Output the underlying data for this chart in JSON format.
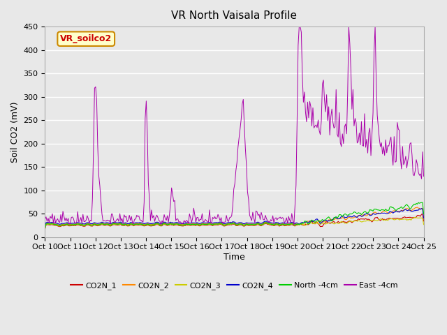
{
  "title": "VR North Vaisala Profile",
  "xlabel": "Time",
  "ylabel": "Soil CO2 (mV)",
  "ylim": [
    0,
    450
  ],
  "xlim": [
    0,
    15
  ],
  "background_color": "#e8e8e8",
  "grid_color": "white",
  "tick_labels": [
    "Oct 10",
    "Oct 11",
    "Oct 12",
    "Oct 13",
    "Oct 14",
    "Oct 15",
    "Oct 16",
    "Oct 17",
    "Oct 18",
    "Oct 19",
    "Oct 20",
    "Oct 21",
    "Oct 22",
    "Oct 23",
    "Oct 24",
    "Oct 25"
  ],
  "series_colors": {
    "CO2N_1": "#cc0000",
    "CO2N_2": "#ff8800",
    "CO2N_3": "#cccc00",
    "CO2N_4": "#0000cc",
    "North_4cm": "#00cc00",
    "East_4cm": "#aa00aa"
  },
  "annotation_text": "VR_soilco2",
  "annotation_bg": "#ffffcc",
  "annotation_border": "#cc8800"
}
